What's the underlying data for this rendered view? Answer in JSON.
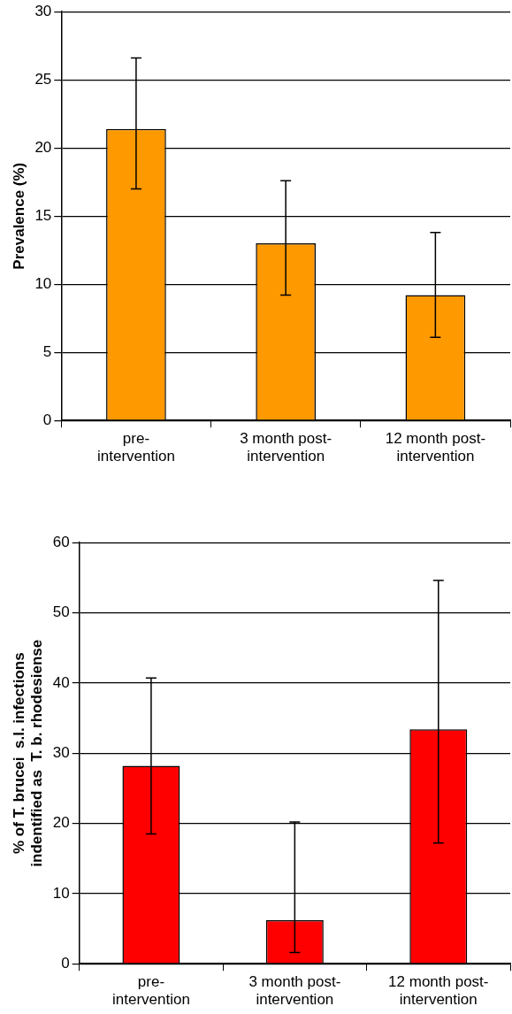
{
  "chart_data": [
    {
      "type": "bar",
      "ylabel": "Prevalence (%)",
      "categories": [
        "pre-intervention",
        "3 month post-intervention",
        "12 month post-intervention"
      ],
      "values": [
        21.4,
        13.0,
        9.2
      ],
      "color": "#ff9900",
      "errors": [
        [
          17.0,
          26.6
        ],
        [
          9.2,
          17.6
        ],
        [
          6.1,
          13.8
        ]
      ],
      "ylim": [
        0,
        30
      ],
      "yticks": [
        0,
        5,
        10,
        15,
        20,
        25,
        30
      ],
      "grid": "y",
      "legend": false
    },
    {
      "type": "bar",
      "ylabel": "% of T. brucei  s.l. infections\nindentified as  T. b. rhodesiense",
      "categories": [
        "pre-intervention",
        "3 month post-intervention",
        "12 month post-intervention"
      ],
      "values": [
        28.2,
        6.2,
        33.4
      ],
      "color": "#ff0000",
      "errors": [
        [
          18.5,
          40.7
        ],
        [
          1.6,
          20.2
        ],
        [
          17.2,
          54.6
        ]
      ],
      "ylim": [
        0,
        60
      ],
      "yticks": [
        0,
        10,
        20,
        30,
        40,
        50,
        60
      ],
      "grid": "y",
      "legend": false
    }
  ]
}
